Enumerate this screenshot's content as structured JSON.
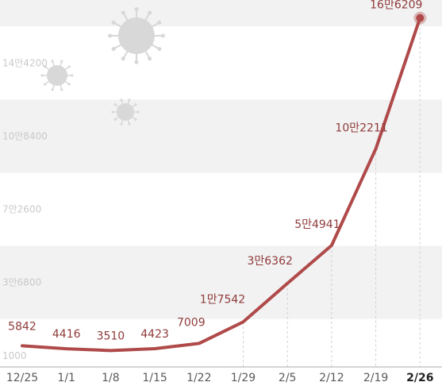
{
  "chart_data": {
    "type": "line",
    "title": "",
    "xlabel": "",
    "ylabel": "",
    "x": [
      "12/25",
      "1/1",
      "1/8",
      "1/15",
      "1/22",
      "1/29",
      "2/5",
      "2/12",
      "2/19",
      "2/26"
    ],
    "series": [
      {
        "values": [
          5842,
          4416,
          3510,
          4423,
          7009,
          17542,
          36362,
          54941,
          102211,
          166209
        ],
        "labels": [
          "5842",
          "4416",
          "3510",
          "4423",
          "7009",
          "1만7542",
          "3만6362",
          "5만4941",
          "10만2211",
          "16만6209"
        ]
      }
    ],
    "yticks": [
      {
        "value": 1000,
        "label": "1000"
      },
      {
        "value": 36800,
        "label": "3만6800"
      },
      {
        "value": 72600,
        "label": "7만2600"
      },
      {
        "value": 108400,
        "label": "10만8400"
      },
      {
        "value": 144200,
        "label": "14만4200"
      }
    ],
    "ylim": [
      -4500,
      175000
    ],
    "grid": true,
    "colors": {
      "line": "#b04a4a",
      "label": "#8f3a3a",
      "band": "#f2f2f2",
      "icon": "#d8d8d8"
    },
    "decorations": [
      "virus-icon",
      "virus-icon",
      "virus-icon"
    ]
  }
}
